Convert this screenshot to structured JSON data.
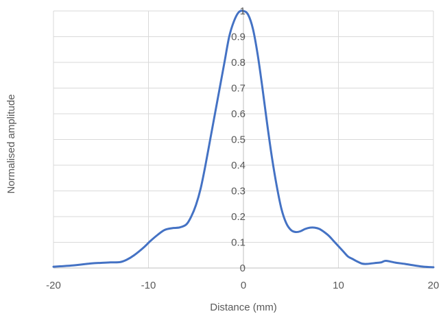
{
  "chart_data": {
    "type": "line",
    "title": "",
    "xlabel": "Distance (mm)",
    "ylabel": "Normalised amplitude",
    "xlim": [
      -20,
      20
    ],
    "ylim": [
      0,
      1
    ],
    "x_ticks": [
      -20,
      -10,
      0,
      10,
      20
    ],
    "y_ticks": [
      0,
      0.1,
      0.2,
      0.3,
      0.4,
      0.5,
      0.6,
      0.7,
      0.8,
      0.9,
      1
    ],
    "grid": true,
    "legend": "none",
    "colors": {
      "line": "#4472C4",
      "grid": "#D9D9D9",
      "axis": "#BFBFBF",
      "text": "#595959"
    },
    "series": [
      {
        "x": [
          -20,
          -18,
          -16,
          -15,
          -14,
          -13,
          -12.3,
          -11.5,
          -10.5,
          -9.8,
          -9,
          -8.3,
          -7.5,
          -6.7,
          -6,
          -5.5,
          -5,
          -4.5,
          -4,
          -3.5,
          -3,
          -2.5,
          -2,
          -1.5,
          -1,
          -0.5,
          0,
          0.5,
          1,
          1.5,
          2,
          2.5,
          3,
          3.5,
          4,
          4.5,
          5,
          5.5,
          6,
          6.5,
          7,
          7.5,
          8,
          8.5,
          9,
          9.5,
          10,
          10.5,
          11,
          11.5,
          12,
          12.5,
          13,
          14,
          14.5,
          15,
          16,
          17,
          18,
          19,
          20
        ],
        "y": [
          0.005,
          0.01,
          0.018,
          0.02,
          0.022,
          0.023,
          0.032,
          0.05,
          0.08,
          0.105,
          0.13,
          0.148,
          0.155,
          0.158,
          0.17,
          0.2,
          0.245,
          0.31,
          0.4,
          0.5,
          0.6,
          0.7,
          0.8,
          0.9,
          0.96,
          0.995,
          1.0,
          0.985,
          0.93,
          0.83,
          0.7,
          0.56,
          0.43,
          0.32,
          0.23,
          0.175,
          0.148,
          0.14,
          0.143,
          0.152,
          0.157,
          0.157,
          0.152,
          0.14,
          0.125,
          0.105,
          0.085,
          0.065,
          0.045,
          0.035,
          0.025,
          0.017,
          0.016,
          0.02,
          0.022,
          0.028,
          0.021,
          0.016,
          0.01,
          0.005,
          0.003
        ]
      }
    ]
  }
}
